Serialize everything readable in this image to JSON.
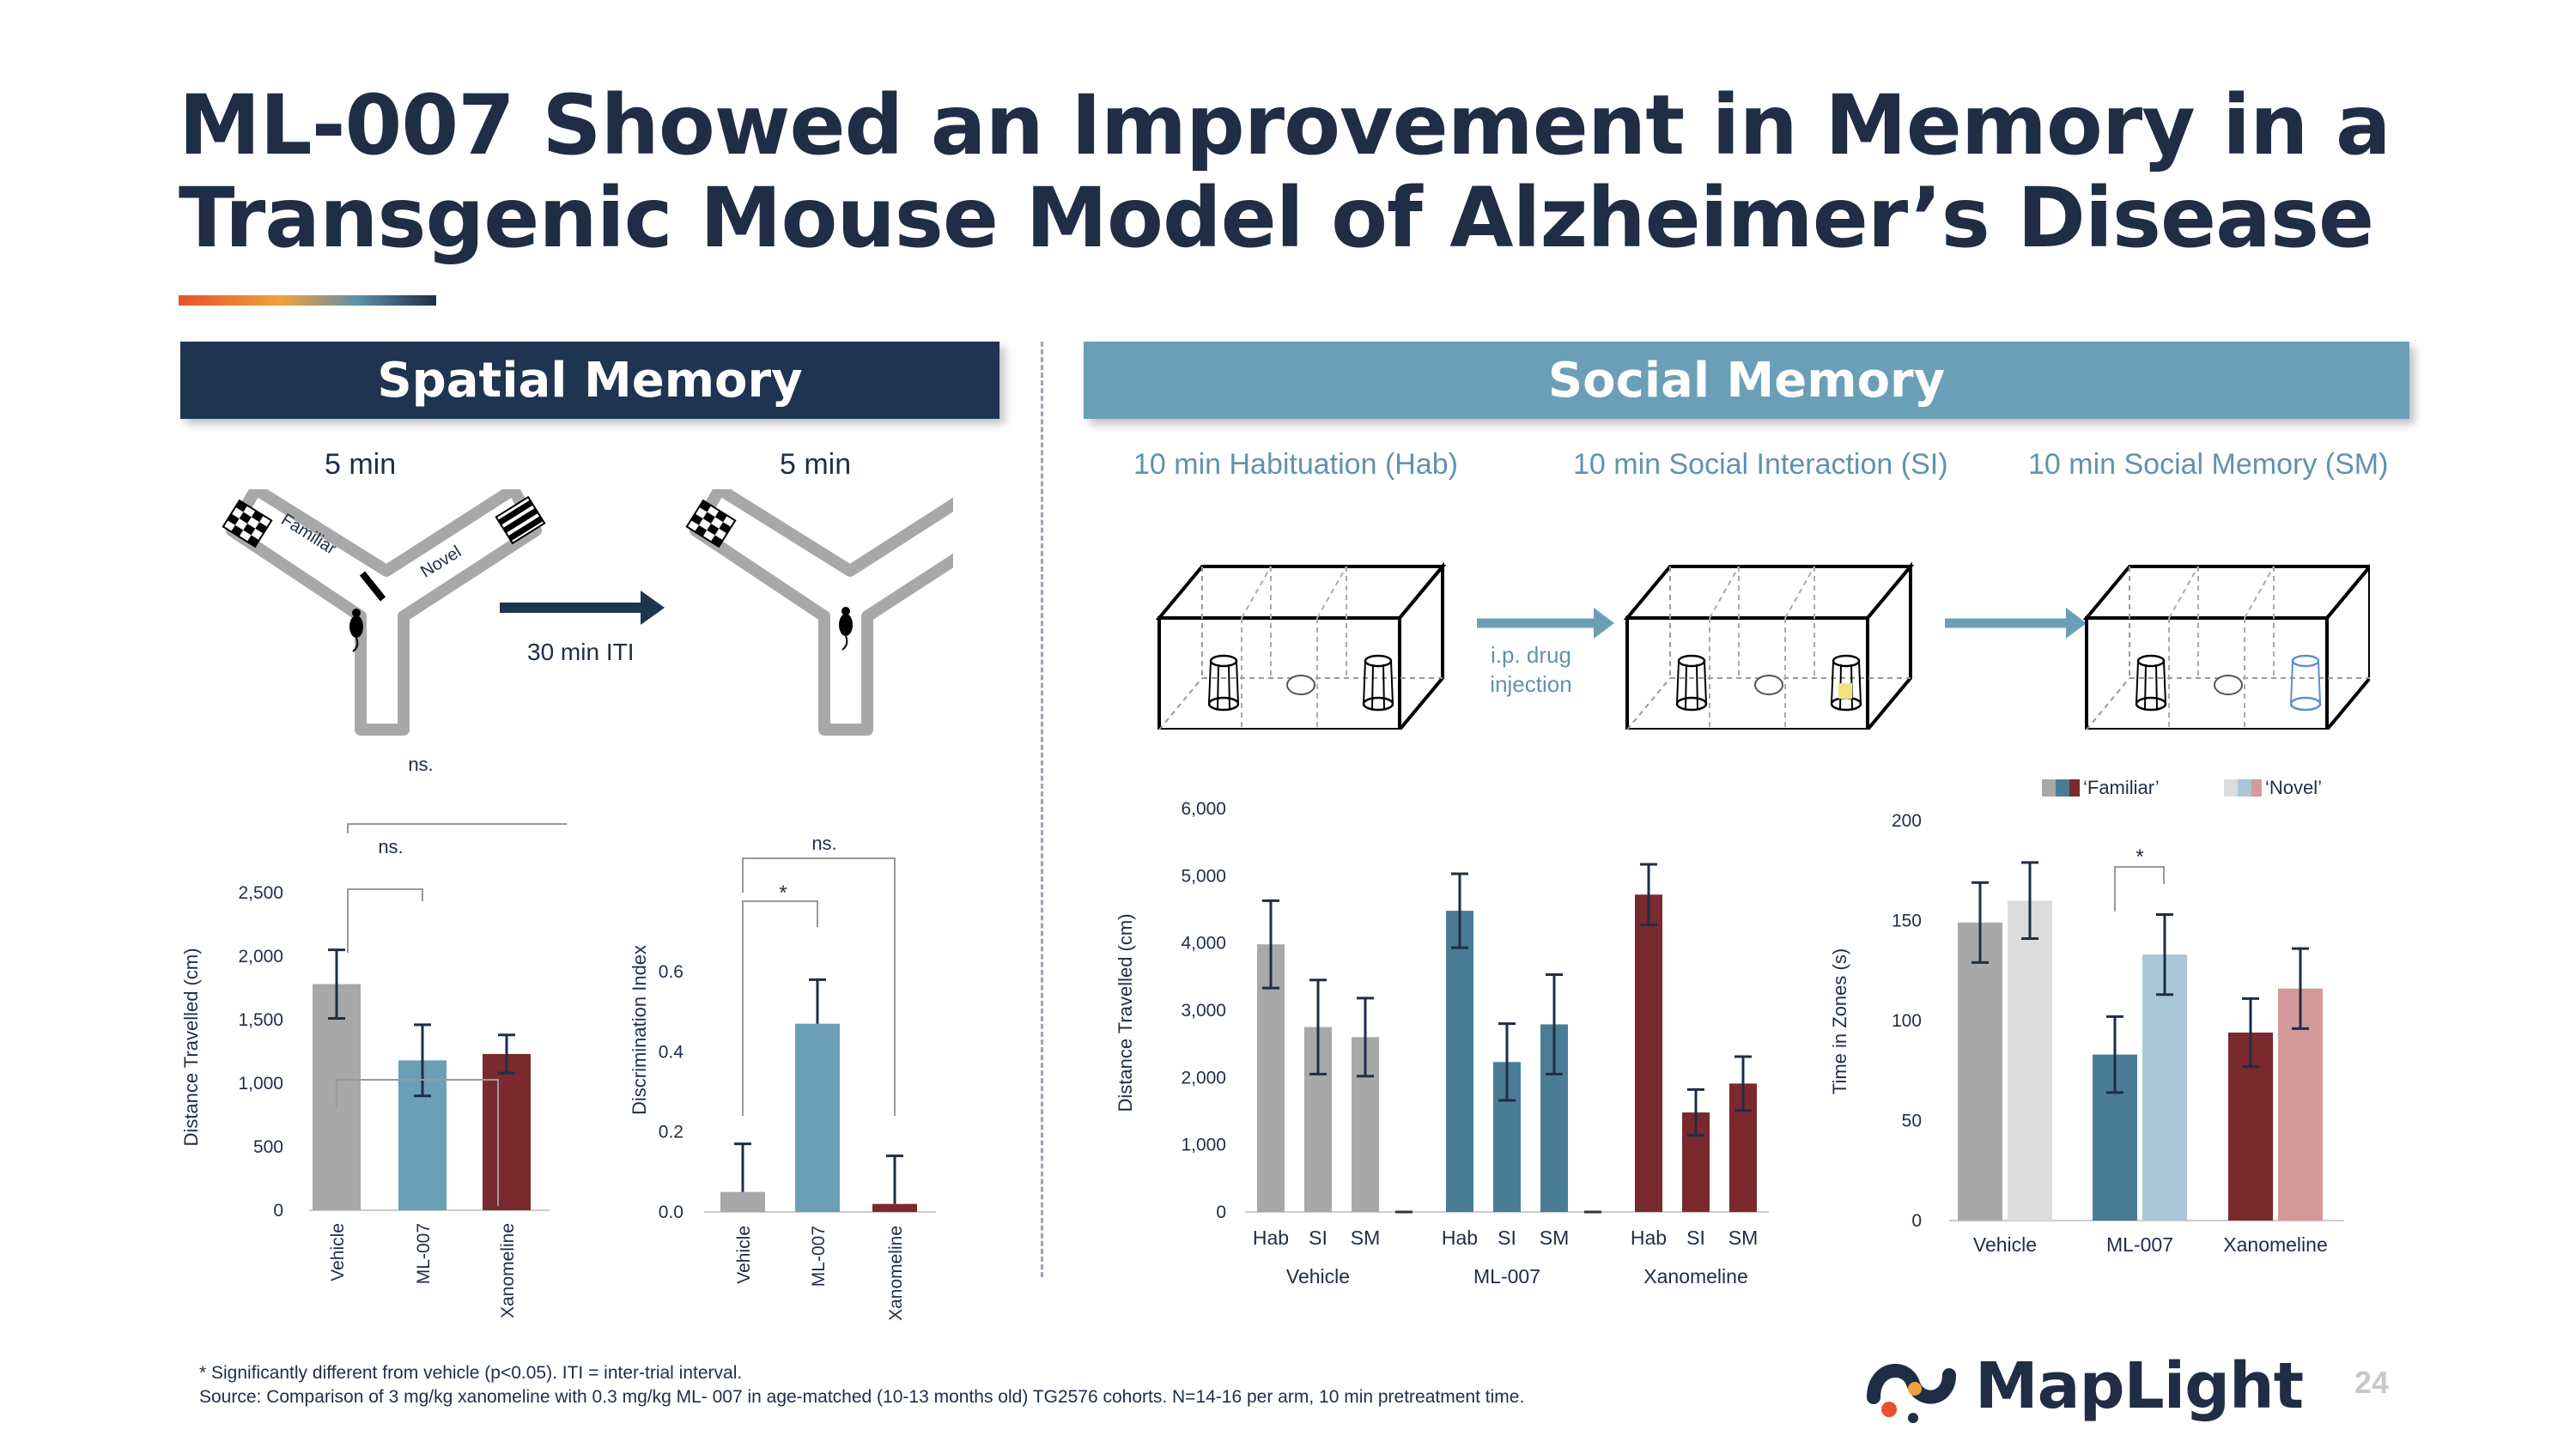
{
  "title_line1": "ML-007 Showed an Improvement in Memory in a",
  "title_line2": "Transgenic Mouse Model of Alzheimer’s Disease",
  "spatial": {
    "header": "Spatial Memory",
    "phase1_time": "5 min",
    "phase2_time": "5 min",
    "arm_familiar": "Familiar",
    "arm_novel": "Novel",
    "iti_label": "30 min ITI"
  },
  "social": {
    "header": "Social Memory",
    "stage1": "10 min Habituation (Hab)",
    "stage2": "10 min Social Interaction (SI)",
    "stage3": "10 min Social Memory (SM)",
    "injection": "i.p. drug injection"
  },
  "colors": {
    "navy": "#1f2d45",
    "gray": "#a8a8a8",
    "light_gray": "#dcdcdc",
    "blue": "#6b9fb7",
    "dark_blue": "#4a7d95",
    "light_blue": "#a9c7d6",
    "maroon": "#7a2a2e",
    "pink": "#d39a9a"
  },
  "chart_data": [
    {
      "type": "bar",
      "ylabel": "Distance Travelled (cm)",
      "categories": [
        "Vehicle",
        "ML-007",
        "Xanomeline"
      ],
      "values": [
        1780,
        1180,
        1230
      ],
      "errors": [
        270,
        280,
        150
      ],
      "ylim": [
        0,
        2500
      ],
      "ticks": [
        "0",
        "500",
        "1,000",
        "1,500",
        "2,000",
        "2,500"
      ],
      "annotations": [
        "ns.",
        "ns."
      ]
    },
    {
      "type": "bar",
      "ylabel": "Discrimination Index",
      "categories": [
        "Vehicle",
        "ML-007",
        "Xanomeline"
      ],
      "values": [
        0.05,
        0.47,
        0.02
      ],
      "errors": [
        0.12,
        0.11,
        0.12
      ],
      "ylim": [
        0,
        0.6
      ],
      "ticks": [
        "0.0",
        "0.2",
        "0.4",
        "0.6"
      ],
      "annotations": [
        "*",
        "ns."
      ]
    },
    {
      "type": "bar",
      "ylabel": "Distance Travelled (cm)",
      "groups": [
        "Vehicle",
        "ML-007",
        "Xanomeline"
      ],
      "categories": [
        "Hab",
        "SI",
        "SM"
      ],
      "series": [
        {
          "name": "Vehicle",
          "values": [
            3980,
            2750,
            2600
          ],
          "errors": [
            650,
            700,
            580
          ]
        },
        {
          "name": "ML-007",
          "values": [
            4480,
            2230,
            2790
          ],
          "errors": [
            550,
            570,
            740
          ]
        },
        {
          "name": "Xanomeline",
          "values": [
            4720,
            1480,
            1910
          ],
          "errors": [
            450,
            340,
            400
          ]
        }
      ],
      "ylim": [
        0,
        6000
      ],
      "ticks": [
        "0",
        "1,000",
        "2,000",
        "3,000",
        "4,000",
        "5,000",
        "6,000"
      ]
    },
    {
      "type": "bar",
      "ylabel": "Time in Zones (s)",
      "categories": [
        "Vehicle",
        "ML-007",
        "Xanomeline"
      ],
      "series": [
        {
          "name": "‘Familiar’",
          "values": [
            149,
            83,
            94
          ],
          "errors": [
            20,
            19,
            17
          ]
        },
        {
          "name": "‘Novel’",
          "values": [
            160,
            133,
            116
          ],
          "errors": [
            19,
            20,
            20
          ]
        }
      ],
      "ylim": [
        0,
        200
      ],
      "ticks": [
        "0",
        "50",
        "100",
        "150",
        "200"
      ],
      "legend": [
        "‘Familiar’",
        "‘Novel’"
      ],
      "annotations": [
        "*"
      ]
    }
  ],
  "footnote1": "* Significantly different from vehicle (p<0.05). ITI = inter-trial interval.",
  "footnote2": "Source: Comparison of 3 mg/kg xanomeline with 0.3 mg/kg ML- 007 in age-matched (10-13 months old) TG2576 cohorts. N=14-16 per arm, 10 min pretreatment time.",
  "logo_text": "MapLight",
  "page_number": "24"
}
